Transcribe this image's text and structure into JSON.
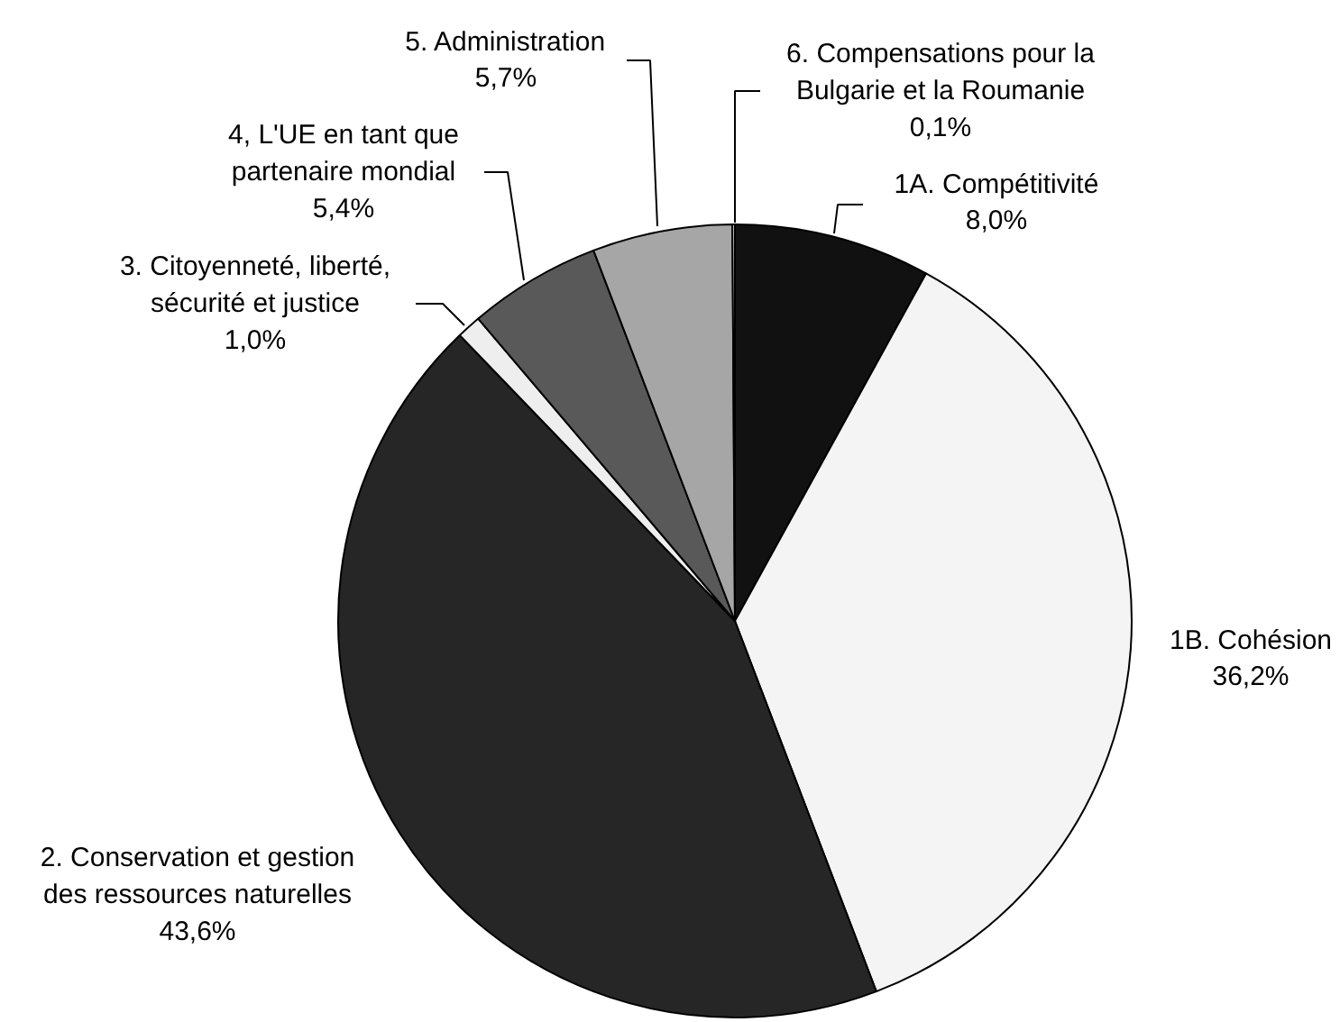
{
  "chart_data": {
    "type": "pie",
    "categories": [
      "1A. Compétitivité",
      "1B. Cohésion",
      "2. Conservation et gestion des ressources naturelles",
      "3. Citoyenneté, liberté, sécurité et justice",
      "4, L'UE en tant que partenaire mondial",
      "5. Administration",
      "6. Compensations pour la Bulgarie et la Roumanie"
    ],
    "values": [
      8.0,
      36.2,
      43.6,
      1.0,
      5.4,
      5.7,
      0.1
    ],
    "value_labels": [
      "8,0%",
      "36,2%",
      "43,6%",
      "1,0%",
      "5,4%",
      "5,7%",
      "0,1%"
    ],
    "colors": [
      "#111111",
      "#f4f4f4",
      "#262626",
      "#eeeeee",
      "#595959",
      "#a6a6a6",
      "#ffffff"
    ]
  }
}
